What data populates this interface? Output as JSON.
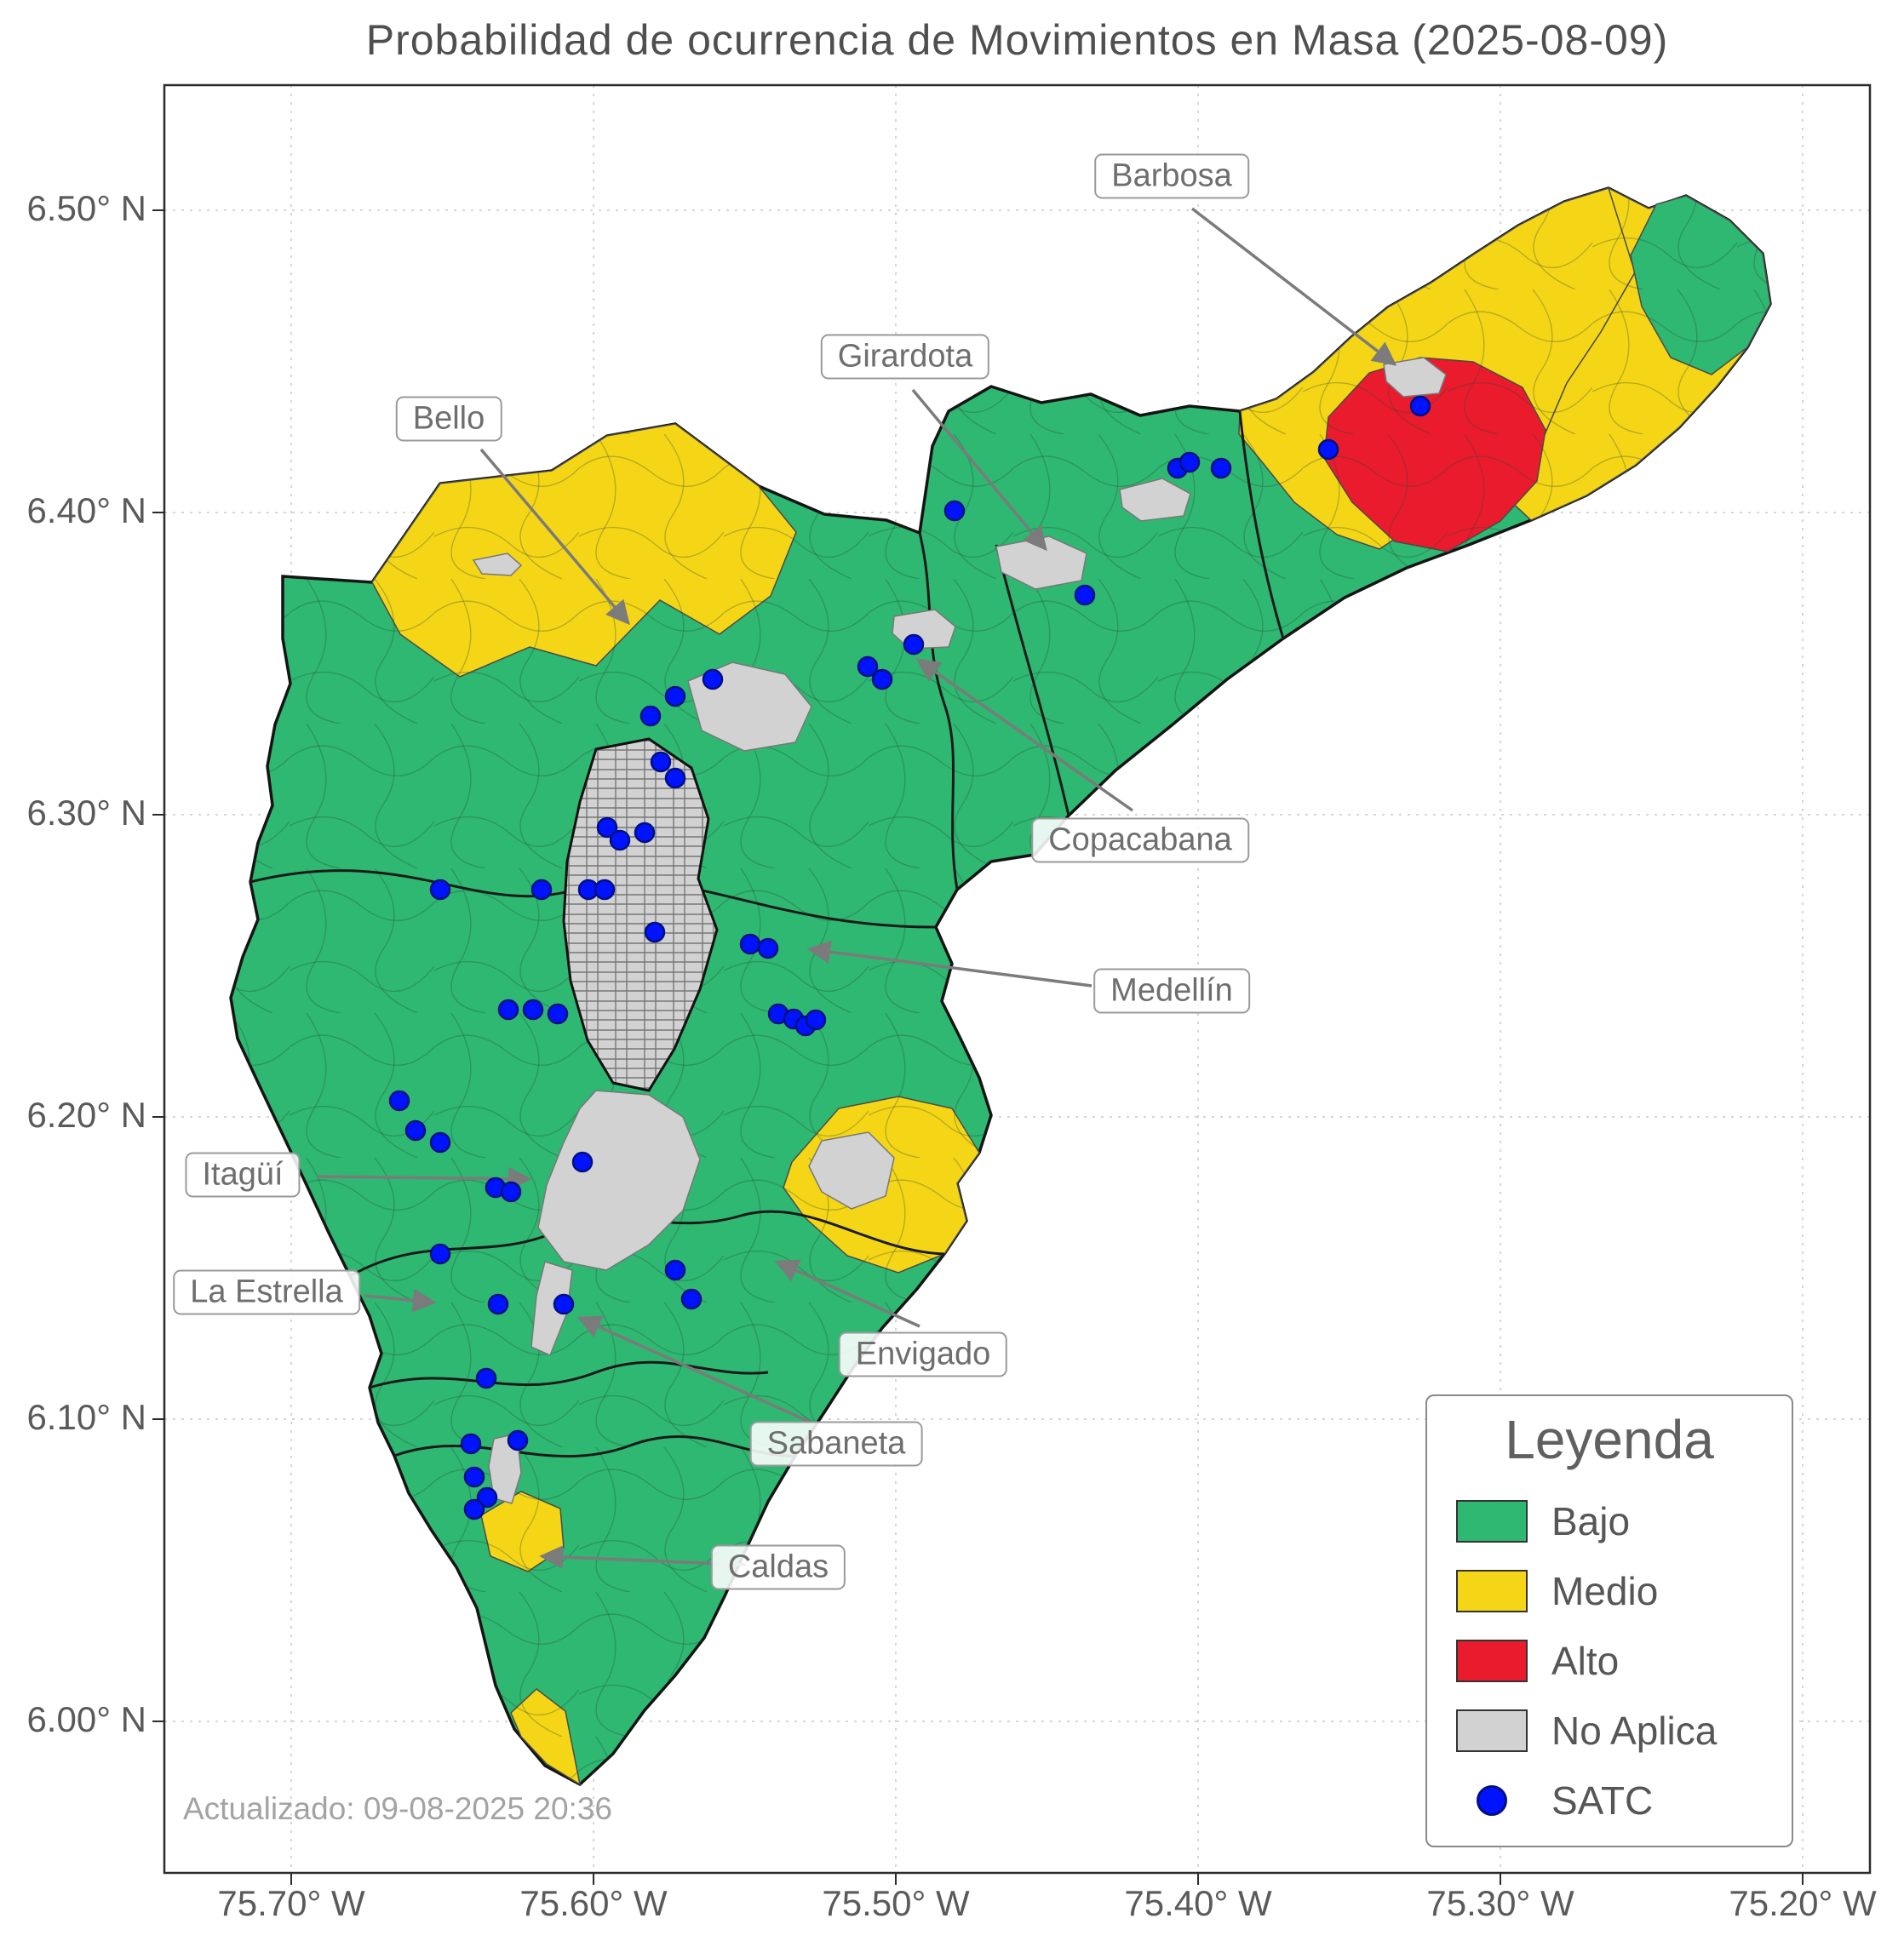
{
  "title": "Probabilidad de ocurrencia de Movimientos en Masa (2025-08-09)",
  "updated": "Actualizado: 09-08-2025 20:36",
  "axes": {
    "x_ticks": [
      "75.70° W",
      "75.60° W",
      "75.50° W",
      "75.40° W",
      "75.30° W",
      "75.20° W"
    ],
    "y_ticks": [
      "6.50° N",
      "6.40° N",
      "6.30° N",
      "6.20° N",
      "6.10° N",
      "6.00° N"
    ]
  },
  "legend": {
    "title": "Leyenda",
    "items": [
      {
        "label": "Bajo",
        "color": "#2eb871",
        "type": "swatch"
      },
      {
        "label": "Medio",
        "color": "#f5d616",
        "type": "swatch"
      },
      {
        "label": "Alto",
        "color": "#ea1b2d",
        "type": "swatch"
      },
      {
        "label": "No Aplica",
        "color": "#d2d2d2",
        "type": "swatch"
      },
      {
        "label": "SATC",
        "color": "#0013ff",
        "type": "dot"
      }
    ]
  },
  "annotations": [
    {
      "label": "Barbosa"
    },
    {
      "label": "Girardota"
    },
    {
      "label": "Bello"
    },
    {
      "label": "Copacabana"
    },
    {
      "label": "Medellín"
    },
    {
      "label": "Itagüí"
    },
    {
      "label": "La Estrella"
    },
    {
      "label": "Envigado"
    },
    {
      "label": "Sabaneta"
    },
    {
      "label": "Caldas"
    }
  ],
  "map": {
    "risk_levels": {
      "bajo": "#2eb871",
      "medio": "#f5d616",
      "alto": "#ea1b2d",
      "no_aplica": "#d2d2d2"
    },
    "satc_point_color": "#0013ff",
    "satc_points": [
      [
        1668,
        477
      ],
      [
        1560,
        528
      ],
      [
        1383,
        550
      ],
      [
        1397,
        543
      ],
      [
        1434,
        550
      ],
      [
        1121,
        600
      ],
      [
        1274,
        699
      ],
      [
        1073,
        757
      ],
      [
        1019,
        783
      ],
      [
        1036,
        798
      ],
      [
        837,
        798
      ],
      [
        793,
        818
      ],
      [
        764,
        841
      ],
      [
        776,
        895
      ],
      [
        793,
        914
      ],
      [
        713,
        972
      ],
      [
        757,
        978
      ],
      [
        728,
        987
      ],
      [
        636,
        1045
      ],
      [
        691,
        1045
      ],
      [
        710,
        1045
      ],
      [
        517,
        1045
      ],
      [
        769,
        1095
      ],
      [
        881,
        1109
      ],
      [
        902,
        1114
      ],
      [
        597,
        1186
      ],
      [
        626,
        1186
      ],
      [
        655,
        1191
      ],
      [
        914,
        1191
      ],
      [
        932,
        1197
      ],
      [
        946,
        1205
      ],
      [
        958,
        1198
      ],
      [
        469,
        1293
      ],
      [
        488,
        1328
      ],
      [
        517,
        1342
      ],
      [
        684,
        1365
      ],
      [
        582,
        1395
      ],
      [
        600,
        1400
      ],
      [
        517,
        1473
      ],
      [
        793,
        1492
      ],
      [
        585,
        1532
      ],
      [
        662,
        1532
      ],
      [
        812,
        1526
      ],
      [
        571,
        1619
      ],
      [
        553,
        1696
      ],
      [
        608,
        1692
      ],
      [
        557,
        1735
      ],
      [
        572,
        1759
      ],
      [
        557,
        1773
      ]
    ]
  }
}
